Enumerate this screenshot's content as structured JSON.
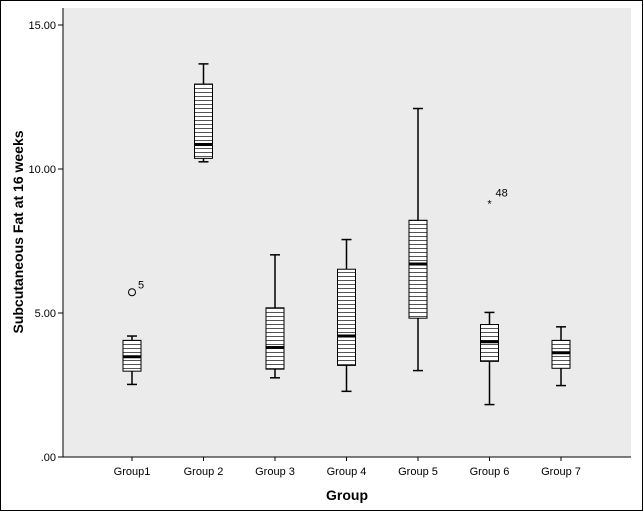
{
  "chart_data": {
    "type": "boxplot",
    "title": "",
    "xlabel": "Group",
    "ylabel": "Subcutaneous Fat at 16 weeks",
    "ylim": [
      0,
      15
    ],
    "yticks": [
      {
        "value": 0,
        "label": ".00"
      },
      {
        "value": 5,
        "label": "5.00"
      },
      {
        "value": 10,
        "label": "10.00"
      },
      {
        "value": 15,
        "label": "15.00"
      }
    ],
    "grid": false,
    "plot_background": "#ebebeb",
    "box_pattern": "horizontal-stripes",
    "categories": [
      "Group1",
      "Group 2",
      "Group 3",
      "Group 4",
      "Group 5",
      "Group 6",
      "Group 7"
    ],
    "boxes": [
      {
        "min": 2.52,
        "q1": 2.98,
        "median": 3.48,
        "q3": 4.05,
        "max": 4.2,
        "outliers": [
          {
            "value": 5.72,
            "label": "5",
            "marker": "circle"
          }
        ]
      },
      {
        "min": 10.25,
        "q1": 10.37,
        "median": 10.85,
        "q3": 12.95,
        "max": 13.65,
        "outliers": []
      },
      {
        "min": 2.75,
        "q1": 3.05,
        "median": 3.8,
        "q3": 5.18,
        "max": 7.02,
        "outliers": []
      },
      {
        "min": 2.28,
        "q1": 3.18,
        "median": 4.2,
        "q3": 6.52,
        "max": 7.55,
        "outliers": []
      },
      {
        "min": 3.0,
        "q1": 4.82,
        "median": 6.7,
        "q3": 8.22,
        "max": 12.1,
        "outliers": []
      },
      {
        "min": 1.82,
        "q1": 3.32,
        "median": 4.0,
        "q3": 4.6,
        "max": 5.02,
        "outliers": [
          {
            "value": 8.9,
            "label": "48",
            "marker": "star"
          }
        ]
      },
      {
        "min": 2.48,
        "q1": 3.08,
        "median": 3.62,
        "q3": 4.05,
        "max": 4.52,
        "outliers": []
      }
    ]
  }
}
